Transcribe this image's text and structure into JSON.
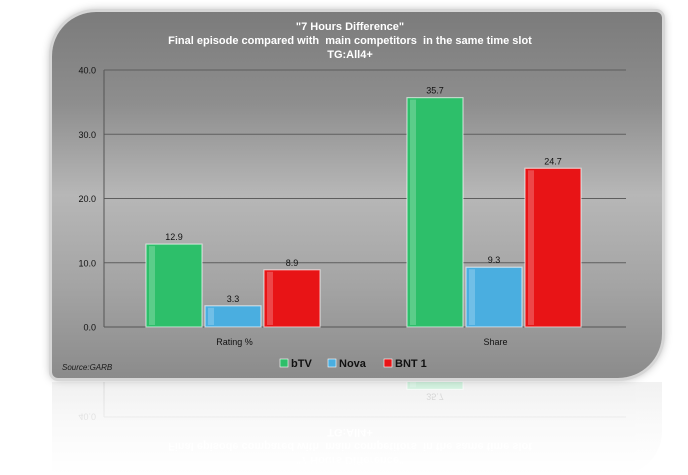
{
  "source_note": "Source:GARB",
  "chart_data": {
    "type": "bar",
    "title": "\"7 Hours Difference\"",
    "subtitle": "Final episode compared with  main competitors  in the same time slot",
    "subtitle2": "TG:All4+",
    "categories": [
      "Rating %",
      "Share"
    ],
    "series": [
      {
        "name": "bTV",
        "values": [
          12.9,
          35.7
        ],
        "color": "#2dbf6a"
      },
      {
        "name": "Nova",
        "values": [
          3.3,
          9.3
        ],
        "color": "#4aaee0"
      },
      {
        "name": "BNT 1",
        "values": [
          8.9,
          24.7
        ],
        "color": "#e81416"
      }
    ],
    "yticks": [
      "0.0",
      "10.0",
      "20.0",
      "30.0",
      "40.0"
    ],
    "ylim": [
      0,
      40
    ],
    "grid": true,
    "legend": "bottom",
    "xlabel": "",
    "ylabel": ""
  }
}
